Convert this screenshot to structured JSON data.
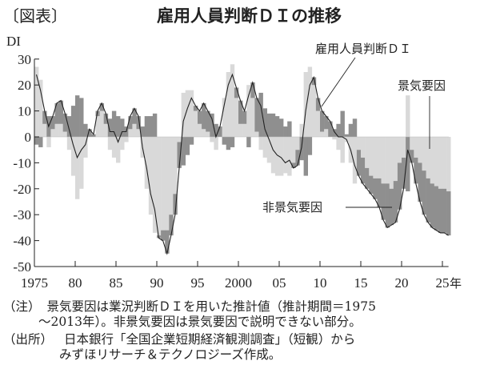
{
  "figure_label": "〔図表〕",
  "title": "雇用人員判断ＤＩの推移",
  "notes": [
    {
      "label": "（注）",
      "text": "景気要因は業況判断ＤＩを用いた推計値（推計期間＝1975",
      "cont": "～2013年）。非景気要因は景気要因で説明できない部分。"
    },
    {
      "label": "（出所）",
      "text": "日本銀行「全国企業短期経済観測調査」（短観）から",
      "cont": "みずほリサーチ＆テクノロジーズ作成。"
    }
  ],
  "chart_data": {
    "type": "bar+line",
    "ylabel": "DI",
    "xunit": "年",
    "ylim": [
      -50,
      30
    ],
    "xlim": [
      1975,
      2025.75
    ],
    "yticks": [
      30,
      20,
      10,
      0,
      -10,
      -20,
      -30,
      -40,
      -50
    ],
    "xticks": [
      {
        "year": 1975,
        "label": "1975"
      },
      {
        "year": 1980,
        "label": "80"
      },
      {
        "year": 1985,
        "label": "85"
      },
      {
        "year": 1990,
        "label": "90"
      },
      {
        "year": 1995,
        "label": "95"
      },
      {
        "year": 2000,
        "label": "2000"
      },
      {
        "year": 2005,
        "label": "05"
      },
      {
        "year": 2010,
        "label": "10"
      },
      {
        "year": 2015,
        "label": "15"
      },
      {
        "year": 2020,
        "label": "20"
      },
      {
        "year": 2025,
        "label": "25"
      }
    ],
    "annotations": {
      "line": "雇用人員判断ＤＩ",
      "cyclical": "景気要因",
      "noncyclical": "非景気要因"
    },
    "colors": {
      "cyclical": "#d9d9d9",
      "noncyclical": "#8f8f8f",
      "line": "#222222"
    },
    "x_start": 1975.0,
    "x_step": 0.5,
    "di": [
      24,
      18,
      10,
      4,
      8,
      13,
      14,
      9,
      3,
      -3,
      -8,
      -5,
      -3,
      3,
      1,
      10,
      13,
      9,
      2,
      2,
      -2,
      2,
      2,
      8,
      11,
      8,
      -4,
      -12,
      -22,
      -28,
      -39,
      -40,
      -45,
      -38,
      -30,
      -12,
      6,
      11,
      15,
      12,
      10,
      13,
      10,
      7,
      0,
      4,
      12,
      20,
      24,
      19,
      14,
      10,
      16,
      21,
      15,
      12,
      3,
      -1,
      -5,
      -7,
      -8,
      -10,
      -9,
      -12,
      -11,
      -4,
      10,
      20,
      23,
      15,
      10,
      8,
      6,
      2,
      0,
      0,
      -1,
      -5,
      -11,
      -15,
      -18,
      -20,
      -22,
      -24,
      -27,
      -32,
      -35,
      -34,
      -33,
      -28,
      -20,
      -5,
      -10,
      -18,
      -25,
      -30,
      -33,
      -35,
      -36,
      -37,
      -37,
      -38
    ],
    "cyclical": [
      27,
      22,
      5,
      -4,
      3,
      5,
      5,
      2,
      -5,
      -15,
      -24,
      -20,
      -8,
      0,
      0,
      8,
      10,
      5,
      -5,
      -8,
      -10,
      -5,
      -2,
      3,
      5,
      3,
      -8,
      -20,
      -30,
      -37,
      -38,
      -36,
      -36,
      -30,
      -22,
      -2,
      17,
      18,
      18,
      10,
      5,
      3,
      2,
      -2,
      -5,
      0,
      15,
      25,
      28,
      15,
      5,
      5,
      20,
      15,
      2,
      -5,
      -8,
      -10,
      -14,
      -15,
      -15,
      -14,
      -15,
      -10,
      -5,
      5,
      25,
      27,
      20,
      10,
      2,
      3,
      0,
      -1,
      -5,
      -10,
      -2,
      -10,
      -18,
      -5,
      -8,
      -12,
      -15,
      -16,
      -16,
      -18,
      -18,
      -20,
      -17,
      -10,
      -8,
      16,
      -5,
      -8,
      -10,
      -13,
      -16,
      -18,
      -19,
      -20,
      -20,
      -21
    ]
  }
}
